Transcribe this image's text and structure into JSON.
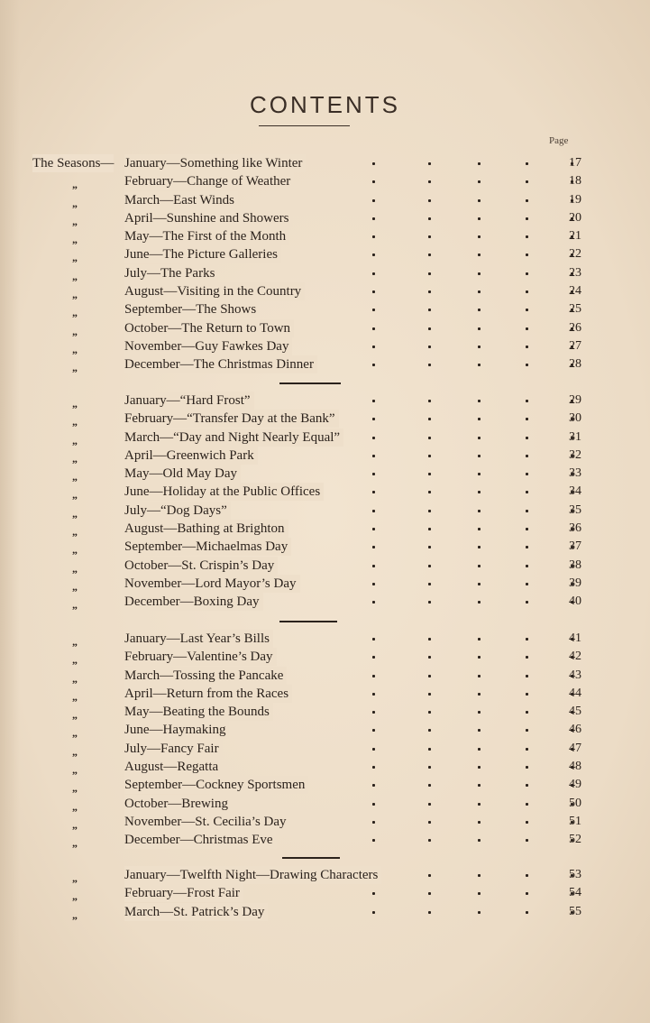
{
  "title": "CONTENTS",
  "page_header": "Page",
  "ditto": "„",
  "groups": [
    {
      "entries": [
        {
          "prefix": "The Seasons—",
          "text": "January—Something like Winter",
          "page": "17"
        },
        {
          "text": "February—Change of Weather",
          "page": "18"
        },
        {
          "text": "March—East Winds",
          "page": "19"
        },
        {
          "text": "April—Sunshine and Showers",
          "page": "20"
        },
        {
          "text": "May—The First of the Month",
          "page": "21"
        },
        {
          "text": "June—The Picture Galleries",
          "page": "22"
        },
        {
          "text": "July—The Parks",
          "page": "23"
        },
        {
          "text": "August—Visiting in the Country",
          "page": "24"
        },
        {
          "text": "September—The Shows",
          "page": "25"
        },
        {
          "text": "October—The Return to Town",
          "page": "26"
        },
        {
          "text": "November—Guy Fawkes Day",
          "page": "27"
        },
        {
          "text": "December—The Christmas Dinner",
          "page": "28"
        }
      ]
    },
    {
      "entries": [
        {
          "text": "January—“Hard Frost”",
          "page": "29"
        },
        {
          "text": "February—“Transfer Day at the Bank”",
          "page": "30"
        },
        {
          "text": "March—“Day and Night Nearly Equal”",
          "page": "31"
        },
        {
          "text": "April—Greenwich Park",
          "page": "32"
        },
        {
          "text": "May—Old May Day",
          "page": "33"
        },
        {
          "text": "June—Holiday at the Public Offices",
          "page": "34"
        },
        {
          "text": "July—“Dog Days”",
          "page": "35"
        },
        {
          "text": "August—Bathing at Brighton",
          "page": "36"
        },
        {
          "text": "September—Michaelmas Day",
          "page": "37"
        },
        {
          "text": "October—St. Crispin’s Day",
          "page": "38"
        },
        {
          "text": "November—Lord Mayor’s Day",
          "page": "39"
        },
        {
          "text": "December—Boxing Day",
          "page": "40"
        }
      ]
    },
    {
      "entries": [
        {
          "text": "January—Last Year’s Bills",
          "page": "41"
        },
        {
          "text": "February—Valentine’s Day",
          "page": "42"
        },
        {
          "text": "March—Tossing the Pancake",
          "page": "43"
        },
        {
          "text": "April—Return from the Races",
          "page": "44"
        },
        {
          "text": "May—Beating the Bounds",
          "page": "45"
        },
        {
          "text": "June—Haymaking",
          "page": "46"
        },
        {
          "text": "July—Fancy Fair",
          "page": "47"
        },
        {
          "text": "August—Regatta",
          "page": "48"
        },
        {
          "text": "September—Cockney Sportsmen",
          "page": "49"
        },
        {
          "text": "October—Brewing",
          "page": "50"
        },
        {
          "text": "November—St. Cecilia’s Day",
          "page": "51"
        },
        {
          "text": "December—Christmas Eve",
          "page": "52"
        }
      ]
    },
    {
      "entries": [
        {
          "text": "January—Twelfth Night—Drawing Characters",
          "page": "53"
        },
        {
          "text": "February—Frost Fair",
          "page": "54"
        },
        {
          "text": "March—St. Patrick’s Day",
          "page": "55"
        }
      ]
    }
  ]
}
